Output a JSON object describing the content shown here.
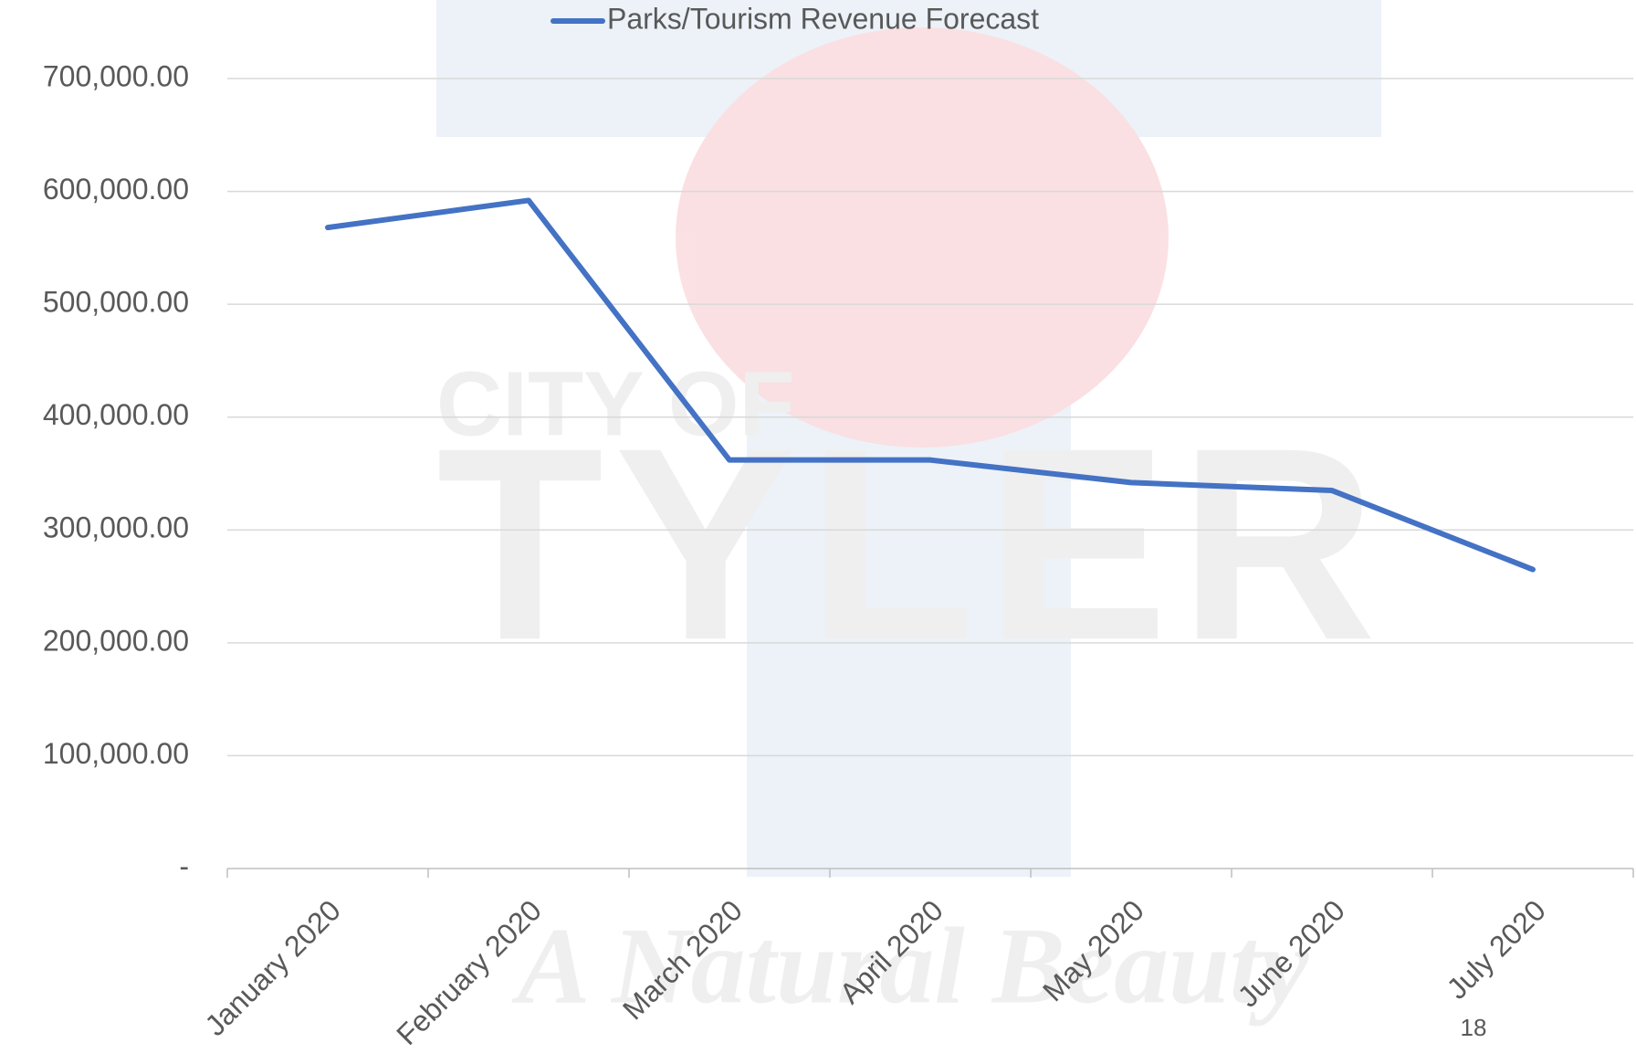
{
  "watermark": {
    "line1": "CITY OF",
    "line2": "TYLER",
    "motto": "A Natural Beauty"
  },
  "page_number": "18",
  "chart_data": {
    "type": "line",
    "categories": [
      "January 2020",
      "February 2020",
      "March 2020",
      "April 2020",
      "May 2020",
      "June 2020",
      "July 2020"
    ],
    "series": [
      {
        "name": "Parks/Tourism Revenue Forecast",
        "color": "#4472c4",
        "values": [
          568000,
          592000,
          362000,
          362000,
          342000,
          335000,
          265000
        ]
      }
    ],
    "ylim": [
      0,
      700000
    ],
    "yticks": [
      {
        "value": 0,
        "label": "-"
      },
      {
        "value": 100000,
        "label": "100,000.00"
      },
      {
        "value": 200000,
        "label": "200,000.00"
      },
      {
        "value": 300000,
        "label": "300,000.00"
      },
      {
        "value": 400000,
        "label": "400,000.00"
      },
      {
        "value": 500000,
        "label": "500,000.00"
      },
      {
        "value": 600000,
        "label": "600,000.00"
      },
      {
        "value": 700000,
        "label": "700,000.00"
      }
    ],
    "grid": true,
    "legend": "top"
  }
}
